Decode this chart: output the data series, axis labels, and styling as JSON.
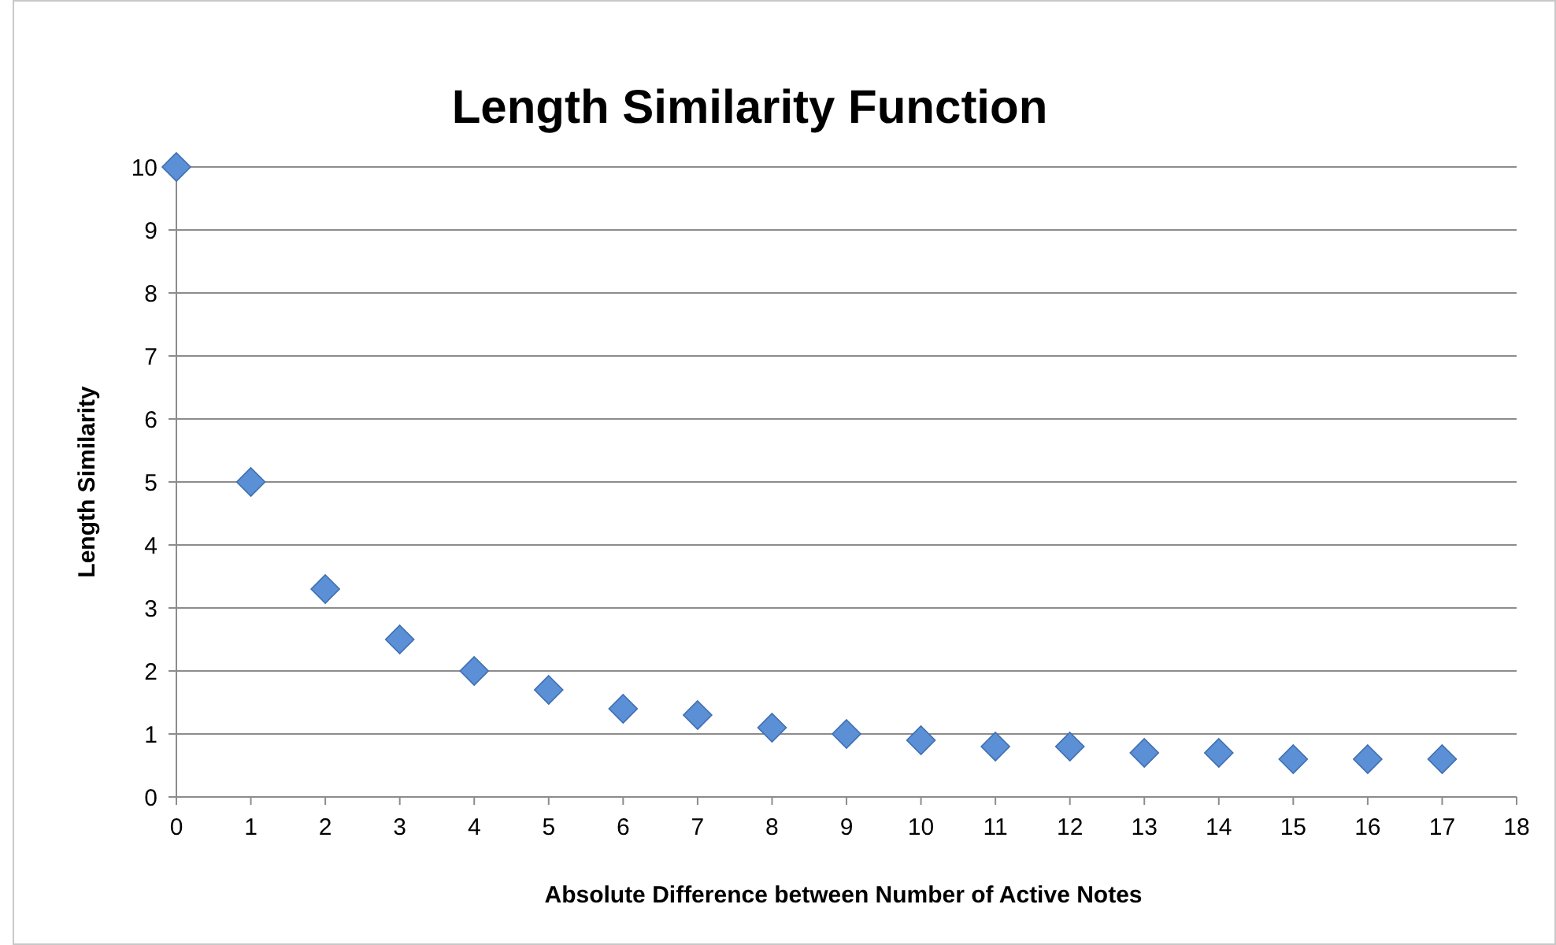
{
  "chart_data": {
    "type": "scatter",
    "title": "Length Similarity Function",
    "xlabel": "Absolute Difference between Number of Active Notes",
    "ylabel": "Length Similarity",
    "x": [
      0,
      1,
      2,
      3,
      4,
      5,
      6,
      7,
      8,
      9,
      10,
      11,
      12,
      13,
      14,
      15,
      16,
      17
    ],
    "series": [
      {
        "color": "#5b8fd6",
        "values": [
          10,
          5,
          3.3,
          2.5,
          2,
          1.7,
          1.4,
          1.3,
          1.1,
          1,
          0.9,
          0.8,
          0.8,
          0.7,
          0.7,
          0.6,
          0.6,
          0.6
        ]
      }
    ],
    "xlim": [
      0,
      18
    ],
    "xticks": [
      0,
      1,
      2,
      3,
      4,
      5,
      6,
      7,
      8,
      9,
      10,
      11,
      12,
      13,
      14,
      15,
      16,
      17,
      18
    ],
    "ylim": [
      0,
      10
    ],
    "yticks": [
      0,
      1,
      2,
      3,
      4,
      5,
      6,
      7,
      8,
      9,
      10
    ],
    "grid": "y",
    "marker": "diamond"
  }
}
